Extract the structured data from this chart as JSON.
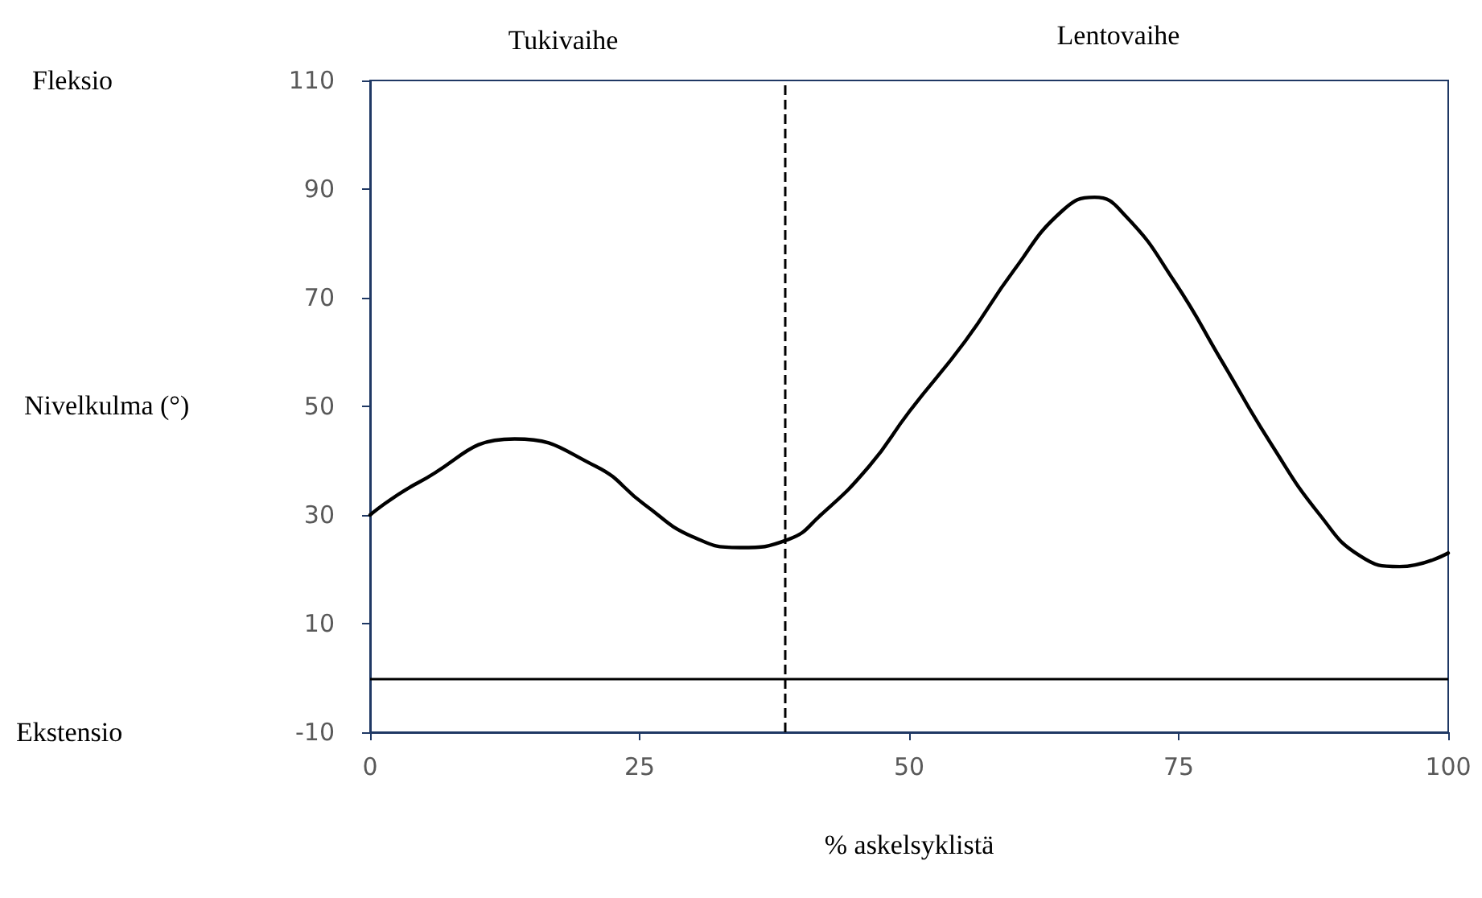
{
  "chart_data": {
    "type": "line",
    "xlabel": "% askelsyklistä",
    "ylabel": "Nivelkulma (°)",
    "annotations": [
      "Tukivaihe",
      "Lentovaihe",
      "Fleksio",
      "Ekstensio"
    ],
    "x": [
      0,
      4.5,
      13.4,
      20.9,
      25.4,
      29.9,
      34.3,
      38.8,
      41.8,
      46.3,
      50,
      55.2,
      59.7,
      64.2,
      67.2,
      70.1,
      74.6,
      79.1,
      83.6,
      88.1,
      91.8,
      95.5,
      100
    ],
    "series": [
      {
        "color": "#000000",
        "values": [
          30,
          36,
          44,
          39,
          32,
          26,
          24,
          25.5,
          30,
          39,
          49,
          62,
          75,
          86,
          88.5,
          85,
          73,
          58,
          43,
          30,
          22.5,
          20.5,
          23
        ]
      }
    ],
    "xlim": [
      0,
      100
    ],
    "xticks": [
      0,
      25,
      50,
      75,
      100
    ],
    "ylim": [
      -10,
      110
    ],
    "yticks": [
      -10,
      10,
      30,
      50,
      70,
      90,
      110
    ],
    "ref_lines": [
      {
        "axis": "y",
        "value": 0,
        "color": "#000000",
        "line_style": "solid"
      },
      {
        "axis": "x",
        "value": 38.5,
        "color": "#000000",
        "line_style": "dashed"
      }
    ],
    "marker": "none",
    "line_style": "solid"
  }
}
